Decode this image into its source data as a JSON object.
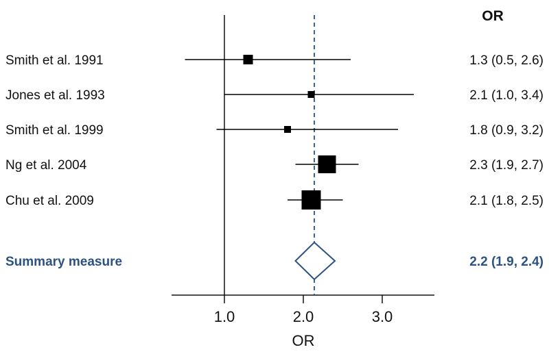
{
  "chart_data": {
    "type": "forest",
    "xlabel": "OR",
    "column_header": "OR",
    "xlim": [
      0.3,
      3.7
    ],
    "xticks": [
      1.0,
      2.0,
      3.0
    ],
    "tick_labels": [
      "1.0",
      "2.0",
      "3.0"
    ],
    "null_line": 1.0,
    "studies": [
      {
        "label": "Smith et al. 1991",
        "or": 1.3,
        "lo": 0.5,
        "hi": 2.6,
        "text": "1.3 (0.5, 2.6)",
        "weight": 14
      },
      {
        "label": "Jones et al. 1993",
        "or": 2.1,
        "lo": 1.0,
        "hi": 3.4,
        "text": "2.1 (1.0, 3.4)",
        "weight": 10
      },
      {
        "label": "Smith et al. 1999",
        "or": 1.8,
        "lo": 0.9,
        "hi": 3.2,
        "text": "1.8 (0.9, 3.2)",
        "weight": 10
      },
      {
        "label": "Ng et al. 2004",
        "or": 2.3,
        "lo": 1.9,
        "hi": 2.7,
        "text": "2.3 (1.9, 2.7)",
        "weight": 26
      },
      {
        "label": "Chu et al. 2009",
        "or": 2.1,
        "lo": 1.8,
        "hi": 2.5,
        "text": "2.1 (1.8, 2.5)",
        "weight": 28
      }
    ],
    "summary": {
      "label": "Summary measure",
      "or": 2.2,
      "lo": 1.9,
      "hi": 2.4,
      "text": "2.2 (1.9, 2.4)"
    },
    "colors": {
      "summary": "#2b5283",
      "markers": "#000000"
    }
  }
}
